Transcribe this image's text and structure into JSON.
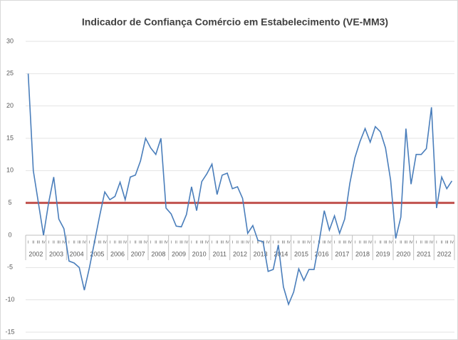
{
  "chart_data": {
    "type": "line",
    "title": "Indicador de Confiança Comércio em Estabelecimento (VE-MM3)",
    "groups": [
      "2002",
      "2003",
      "2004",
      "2005",
      "2006",
      "2007",
      "2008",
      "2009",
      "2010",
      "2011",
      "2012",
      "2013",
      "2014",
      "2015",
      "2016",
      "2017",
      "2018",
      "2019",
      "2020",
      "2021",
      "2022"
    ],
    "categories": [
      "I",
      "II",
      "III",
      "IV",
      "I",
      "II",
      "III",
      "IV",
      "I",
      "II",
      "III",
      "IV",
      "I",
      "II",
      "III",
      "IV",
      "I",
      "II",
      "III",
      "IV",
      "I",
      "II",
      "III",
      "IV",
      "I",
      "II",
      "III",
      "IV",
      "I",
      "II",
      "III",
      "IV",
      "I",
      "II",
      "III",
      "IV",
      "I",
      "II",
      "III",
      "IV",
      "I",
      "II",
      "III",
      "IV",
      "I",
      "II",
      "III",
      "IV",
      "I",
      "II",
      "III",
      "IV",
      "I",
      "II",
      "III",
      "IV",
      "I",
      "II",
      "III",
      "IV",
      "I",
      "II",
      "III",
      "IV",
      "I",
      "II",
      "III",
      "IV",
      "I",
      "II",
      "III",
      "IV",
      "I",
      "II",
      "III",
      "IV",
      "I",
      "II",
      "III",
      "IV",
      "I",
      "II",
      "III",
      "IV"
    ],
    "series": [
      {
        "color": "#4a7ebb",
        "values": [
          25,
          10,
          5,
          0,
          5,
          9,
          2.5,
          1,
          -4,
          -4.3,
          -5,
          -8.5,
          -5,
          -1,
          3,
          6.7,
          5.5,
          6,
          8.2,
          5.5,
          9,
          9.3,
          11.5,
          15,
          13.5,
          12.5,
          15,
          4.2,
          3.3,
          1.4,
          1.3,
          3.2,
          7.5,
          3.8,
          8.3,
          9.5,
          11,
          6.3,
          9.3,
          9.6,
          7.2,
          7.5,
          5.7,
          0.3,
          1.5,
          -0.8,
          -1,
          -5.6,
          -5.3,
          -1.5,
          -8,
          -10.7,
          -8.8,
          -5.2,
          -7,
          -5.3,
          -5.3,
          -1,
          3.8,
          0.8,
          3,
          0.3,
          2.5,
          8,
          12,
          14.5,
          16.5,
          14.4,
          16.8,
          16,
          13.5,
          8.5,
          -0.5,
          2.8,
          16.5,
          7.9,
          12.5,
          12.5,
          13.4,
          19.8,
          4.2,
          9,
          7.2,
          8.4
        ]
      }
    ],
    "reference_line": {
      "value": 5,
      "color": "#c0504d"
    },
    "ylim": [
      -15,
      30
    ],
    "yticks": [
      -15,
      -10,
      -5,
      0,
      5,
      10,
      15,
      20,
      25,
      30
    ],
    "grid": true
  }
}
